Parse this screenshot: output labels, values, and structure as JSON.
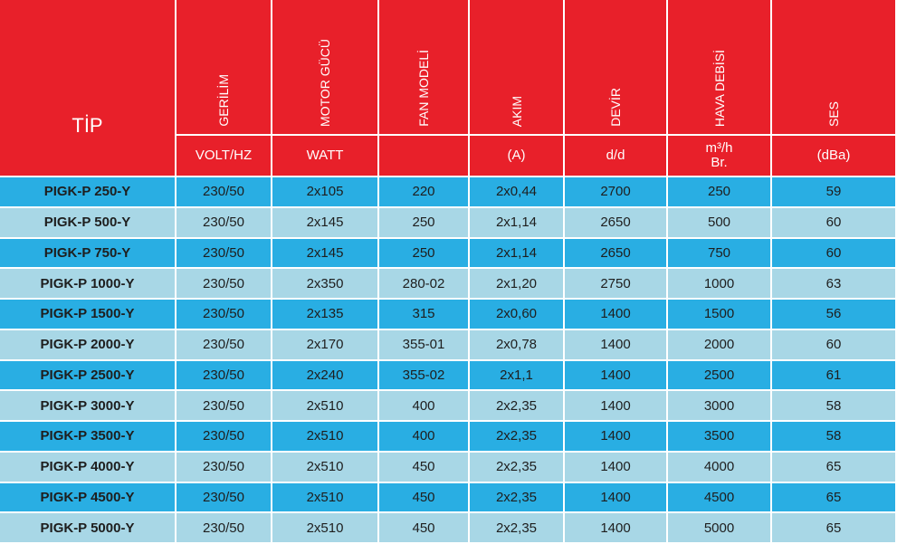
{
  "table": {
    "columns": [
      {
        "label": "TİP"
      },
      {
        "label": "GERİLİM",
        "units": [
          "VOLT/HZ"
        ]
      },
      {
        "label": "MOTOR GÜCÜ",
        "units": [
          "WATT"
        ]
      },
      {
        "label": "FAN MODELİ"
      },
      {
        "label": "AKIM",
        "units": [
          "(A)"
        ]
      },
      {
        "label": "DEVİR",
        "units": [
          "d/d"
        ]
      },
      {
        "label": "HAVA DEBİSİ",
        "units": [
          "m³/h",
          "Br."
        ]
      },
      {
        "label": "SES",
        "units": [
          "(dBa)"
        ]
      }
    ],
    "rows": [
      [
        "PIGK-P 250-Y",
        "230/50",
        "2x105",
        220,
        "2x0,44",
        2700,
        250,
        59
      ],
      [
        "PIGK-P 500-Y",
        "230/50",
        "2x145",
        250,
        "2x1,14",
        2650,
        500,
        60
      ],
      [
        "PIGK-P 750-Y",
        "230/50",
        "2x145",
        250,
        "2x1,14",
        2650,
        750,
        60
      ],
      [
        "PIGK-P 1000-Y",
        "230/50",
        "2x350",
        "280-02",
        "2x1,20",
        2750,
        1000,
        63
      ],
      [
        "PIGK-P 1500-Y",
        "230/50",
        "2x135",
        315,
        "2x0,60",
        1400,
        1500,
        56
      ],
      [
        "PIGK-P 2000-Y",
        "230/50",
        "2x170",
        "355-01",
        "2x0,78",
        1400,
        2000,
        60
      ],
      [
        "PIGK-P 2500-Y",
        "230/50",
        "2x240",
        "355-02",
        "2x1,1",
        1400,
        2500,
        61
      ],
      [
        "PIGK-P 3000-Y",
        "230/50",
        "2x510",
        400,
        "2x2,35",
        1400,
        3000,
        58
      ],
      [
        "PIGK-P 3500-Y",
        "230/50",
        "2x510",
        400,
        "2x2,35",
        1400,
        3500,
        58
      ],
      [
        "PIGK-P 4000-Y",
        "230/50",
        "2x510",
        450,
        "2x2,35",
        1400,
        4000,
        65
      ],
      [
        "PIGK-P 4500-Y",
        "230/50",
        "2x510",
        450,
        "2x2,35",
        1400,
        4500,
        65
      ],
      [
        "PIGK-P 5000-Y",
        "230/50",
        "2x510",
        450,
        "2x2,35",
        1400,
        5000,
        65
      ]
    ]
  }
}
